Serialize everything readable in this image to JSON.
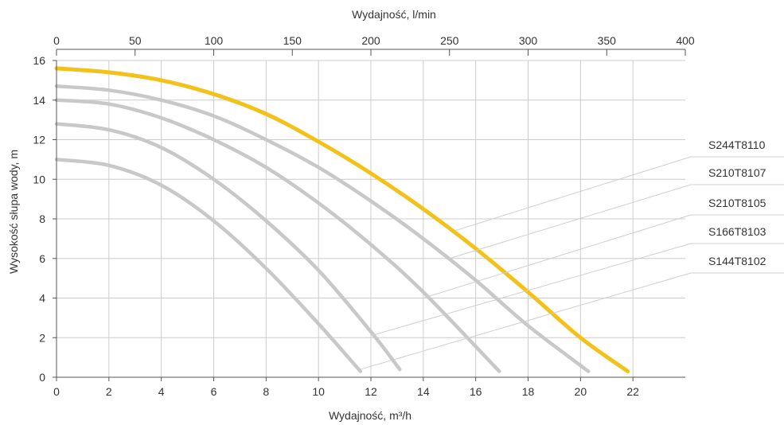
{
  "chart_data": {
    "type": "line",
    "xlabel": "Wydajność, m³/h",
    "ylabel": "Wysokość słupa wody, m",
    "x2label": "Wydajność, l/min",
    "xlim": [
      0,
      24
    ],
    "ylim": [
      0,
      16
    ],
    "x2lim": [
      0,
      400
    ],
    "x_ticks": [
      "0",
      "2",
      "4",
      "6",
      "8",
      "10",
      "12",
      "14",
      "16",
      "18",
      "20",
      "22"
    ],
    "y_ticks": [
      "0",
      "2",
      "4",
      "6",
      "8",
      "10",
      "12",
      "14",
      "16"
    ],
    "x2_ticks": [
      "0",
      "50",
      "100",
      "150",
      "200",
      "250",
      "300",
      "350",
      "400"
    ],
    "x2_tick_values": [
      0,
      50,
      100,
      150,
      200,
      250,
      300,
      350,
      400
    ],
    "grid": true,
    "colors": {
      "highlight": "#f2c21b",
      "series": "#c8c8c8",
      "grid": "#cccccc",
      "axis": "#555555",
      "leader": "#cfcfcf"
    },
    "series": [
      {
        "name": "S244T8110",
        "highlight": true,
        "x": [
          0,
          2,
          4,
          6,
          8,
          10,
          12,
          14,
          16,
          18,
          20,
          21.8
        ],
        "y": [
          15.6,
          15.4,
          15.0,
          14.3,
          13.3,
          11.9,
          10.3,
          8.5,
          6.5,
          4.3,
          2.0,
          0.3
        ]
      },
      {
        "name": "S210T8107",
        "highlight": false,
        "x": [
          0,
          2,
          4,
          6,
          8,
          10,
          12,
          14,
          16,
          18,
          20.3
        ],
        "y": [
          14.7,
          14.5,
          14.0,
          13.2,
          12.0,
          10.6,
          8.9,
          7.0,
          4.9,
          2.6,
          0.3
        ]
      },
      {
        "name": "S210T8105",
        "highlight": false,
        "x": [
          0,
          2,
          4,
          6,
          8,
          10,
          12,
          14,
          16.9
        ],
        "y": [
          14.0,
          13.8,
          13.1,
          12.0,
          10.6,
          8.8,
          6.7,
          4.3,
          0.3
        ]
      },
      {
        "name": "S166T8103",
        "highlight": false,
        "x": [
          0,
          2,
          4,
          6,
          8,
          10,
          12,
          13.1
        ],
        "y": [
          12.8,
          12.5,
          11.6,
          10.0,
          7.9,
          5.4,
          2.3,
          0.4
        ]
      },
      {
        "name": "S144T8102",
        "highlight": false,
        "x": [
          0,
          2,
          4,
          6,
          8,
          10,
          11.6
        ],
        "y": [
          11.0,
          10.7,
          9.7,
          7.9,
          5.5,
          2.7,
          0.3
        ]
      }
    ],
    "legend_leader_anchors": [
      {
        "name": "S244T8110",
        "x": 15.2,
        "y": 7.4
      },
      {
        "name": "S210T8107",
        "x": 15.0,
        "y": 6.0
      },
      {
        "name": "S210T8105",
        "x": 14.0,
        "y": 4.0
      },
      {
        "name": "S166T8103",
        "x": 12.0,
        "y": 2.1
      },
      {
        "name": "S144T8102",
        "x": 11.6,
        "y": 0.4
      }
    ]
  }
}
